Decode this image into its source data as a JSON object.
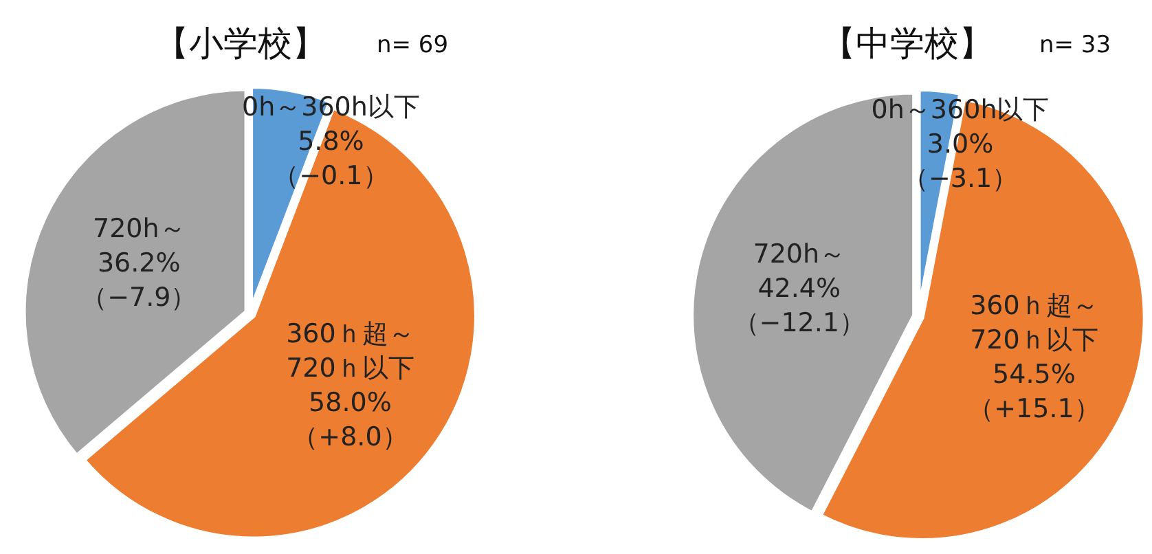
{
  "chart_data": [
    {
      "type": "pie",
      "title": "【小学校】",
      "subtitle": "n= 69",
      "categories": [
        "0h～360h以下",
        "360ｈ超～720ｈ以下",
        "720h～"
      ],
      "values": [
        5.8,
        58.0,
        36.2
      ],
      "colors": [
        "#5b9bd5",
        "#ed7d31",
        "#a5a5a5"
      ],
      "value_labels": [
        "5.8%\n（−0.1）",
        "58.0%\n（+8.0）",
        "36.2%\n（−7.9）"
      ]
    },
    {
      "type": "pie",
      "title": "【中学校】",
      "subtitle": "n= 33",
      "categories": [
        "0h～360h以下",
        "360ｈ超～720ｈ以下",
        "720h～"
      ],
      "values": [
        3.0,
        54.5,
        42.4
      ],
      "colors": [
        "#5b9bd5",
        "#ed7d31",
        "#a5a5a5"
      ],
      "value_labels": [
        "3.0%\n（−3.1）",
        "54.5%\n（+15.1）",
        "42.4%\n（−12.1）"
      ]
    }
  ]
}
